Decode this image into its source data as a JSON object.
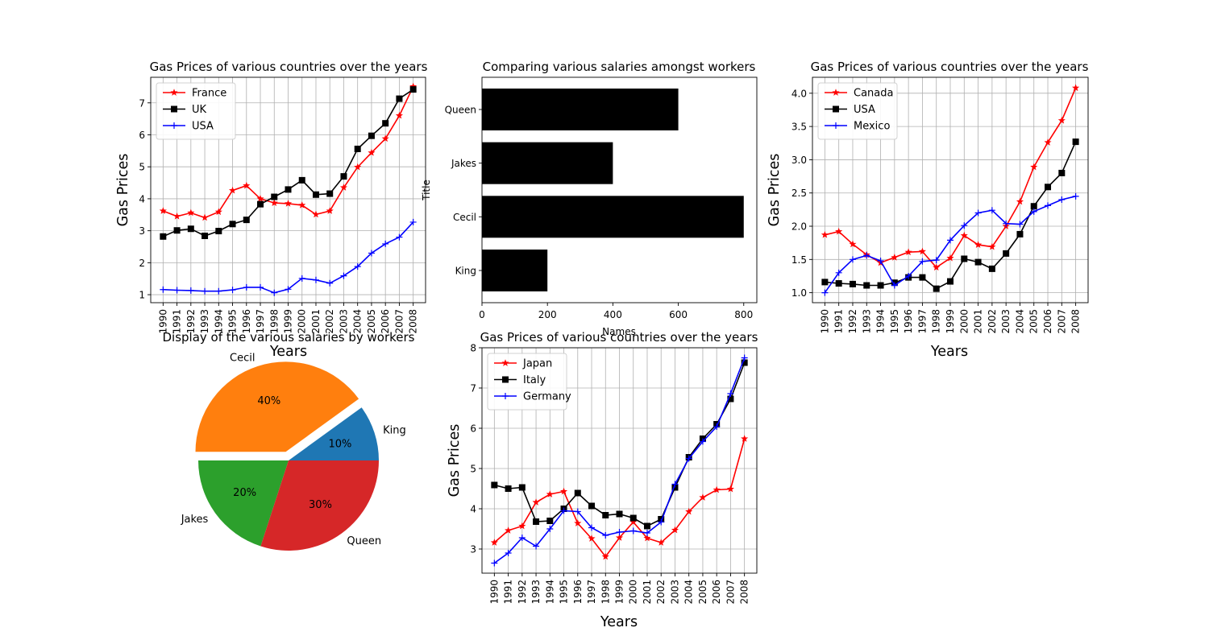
{
  "chart_data": [
    {
      "type": "line",
      "title": "Gas Prices of various countries over the years",
      "xlabel": "Years",
      "ylabel": "Gas Prices",
      "x": [
        1990,
        1991,
        1992,
        1993,
        1994,
        1995,
        1996,
        1997,
        1998,
        1999,
        2000,
        2001,
        2002,
        2003,
        2004,
        2005,
        2006,
        2007,
        2008
      ],
      "ylim": [
        0.75,
        7.8
      ],
      "yticks": [
        1,
        2,
        3,
        4,
        5,
        6,
        7
      ],
      "grid": true,
      "legend": "top-left",
      "series": [
        {
          "name": "France",
          "color": "#ff0000",
          "marker": "star",
          "values": [
            3.62,
            3.45,
            3.56,
            3.41,
            3.59,
            4.26,
            4.41,
            4.0,
            3.87,
            3.85,
            3.8,
            3.51,
            3.62,
            4.35,
            4.99,
            5.44,
            5.88,
            6.6,
            7.51
          ]
        },
        {
          "name": "UK",
          "color": "#000000",
          "marker": "square",
          "values": [
            2.82,
            3.01,
            3.06,
            2.84,
            2.99,
            3.21,
            3.34,
            3.83,
            4.06,
            4.29,
            4.58,
            4.13,
            4.16,
            4.7,
            5.56,
            5.97,
            6.36,
            7.13,
            7.42
          ]
        },
        {
          "name": "USA",
          "color": "#0000ff",
          "marker": "plus",
          "values": [
            1.16,
            1.14,
            1.13,
            1.11,
            1.11,
            1.15,
            1.23,
            1.23,
            1.06,
            1.17,
            1.51,
            1.46,
            1.36,
            1.59,
            1.88,
            2.3,
            2.59,
            2.8,
            3.27
          ]
        }
      ]
    },
    {
      "type": "bar",
      "orientation": "horizontal",
      "title": "Comparing various salaries amongst workers",
      "xlabel": "Names",
      "ylabel": "Title",
      "categories": [
        "King",
        "Cecil",
        "Jakes",
        "Queen"
      ],
      "values": [
        200,
        800,
        400,
        600
      ],
      "xlim": [
        0,
        840
      ],
      "xticks": [
        0,
        200,
        400,
        600,
        800
      ],
      "color": "#000000",
      "grid": false
    },
    {
      "type": "line",
      "title": "Gas Prices of various countries over the years",
      "xlabel": "Years",
      "ylabel": "Gas Prices",
      "x": [
        1990,
        1991,
        1992,
        1993,
        1994,
        1995,
        1996,
        1997,
        1998,
        1999,
        2000,
        2001,
        2002,
        2003,
        2004,
        2005,
        2006,
        2007,
        2008
      ],
      "ylim": [
        0.85,
        4.24
      ],
      "yticks": [
        1.0,
        1.5,
        2.0,
        2.5,
        3.0,
        3.5,
        4.0
      ],
      "ytick_labels": [
        "1.0",
        "1.5",
        "2.0",
        "2.5",
        "3.0",
        "3.5",
        "4.0"
      ],
      "grid": true,
      "legend": "top-left",
      "series": [
        {
          "name": "Canada",
          "color": "#ff0000",
          "marker": "star",
          "values": [
            1.87,
            1.92,
            1.73,
            1.57,
            1.45,
            1.53,
            1.61,
            1.62,
            1.38,
            1.52,
            1.86,
            1.72,
            1.69,
            2.0,
            2.37,
            2.89,
            3.26,
            3.59,
            4.08
          ]
        },
        {
          "name": "USA",
          "color": "#000000",
          "marker": "square",
          "values": [
            1.16,
            1.14,
            1.13,
            1.11,
            1.11,
            1.15,
            1.23,
            1.23,
            1.06,
            1.17,
            1.51,
            1.46,
            1.36,
            1.59,
            1.88,
            2.3,
            2.59,
            2.8,
            3.27
          ]
        },
        {
          "name": "Mexico",
          "color": "#0000ff",
          "marker": "plus",
          "values": [
            1.0,
            1.3,
            1.5,
            1.56,
            1.48,
            1.11,
            1.25,
            1.47,
            1.49,
            1.79,
            2.01,
            2.2,
            2.24,
            2.04,
            2.03,
            2.22,
            2.31,
            2.4,
            2.45
          ]
        }
      ]
    },
    {
      "type": "pie",
      "title": "Display of the various salaries by workers",
      "labels": [
        "King",
        "Cecil",
        "Jakes",
        "Queen"
      ],
      "values": [
        10,
        40,
        20,
        30
      ],
      "percent_labels": [
        "10%",
        "40%",
        "20%",
        "30%"
      ],
      "colors": [
        "#1f77b4",
        "#ff7f0e",
        "#2ca02c",
        "#d62728"
      ],
      "explode": [
        0,
        0.1,
        0,
        0
      ],
      "start_angle": 0
    },
    {
      "type": "line",
      "title": "Gas Prices of various countries over the years",
      "xlabel": "Years",
      "ylabel": "Gas Prices",
      "x": [
        1990,
        1991,
        1992,
        1993,
        1994,
        1995,
        1996,
        1997,
        1998,
        1999,
        2000,
        2001,
        2002,
        2003,
        2004,
        2005,
        2006,
        2007,
        2008
      ],
      "ylim": [
        2.4,
        8.0
      ],
      "yticks": [
        3,
        4,
        5,
        6,
        7,
        8
      ],
      "grid": true,
      "legend": "top-left",
      "series": [
        {
          "name": "Japan",
          "color": "#ff0000",
          "marker": "star",
          "values": [
            3.16,
            3.46,
            3.57,
            4.16,
            4.36,
            4.43,
            3.64,
            3.26,
            2.81,
            3.28,
            3.67,
            3.27,
            3.16,
            3.47,
            3.93,
            4.28,
            4.47,
            4.49,
            5.74
          ]
        },
        {
          "name": "Italy",
          "color": "#000000",
          "marker": "square",
          "values": [
            4.59,
            4.5,
            4.53,
            3.68,
            3.7,
            4.0,
            4.39,
            4.07,
            3.84,
            3.87,
            3.77,
            3.57,
            3.74,
            4.53,
            5.28,
            5.74,
            6.1,
            6.73,
            7.63
          ]
        },
        {
          "name": "Germany",
          "color": "#0000ff",
          "marker": "plus",
          "values": [
            2.65,
            2.9,
            3.28,
            3.07,
            3.5,
            3.95,
            3.93,
            3.53,
            3.34,
            3.42,
            3.45,
            3.4,
            3.67,
            4.61,
            5.25,
            5.67,
            6.04,
            6.86,
            7.75
          ]
        }
      ]
    }
  ]
}
